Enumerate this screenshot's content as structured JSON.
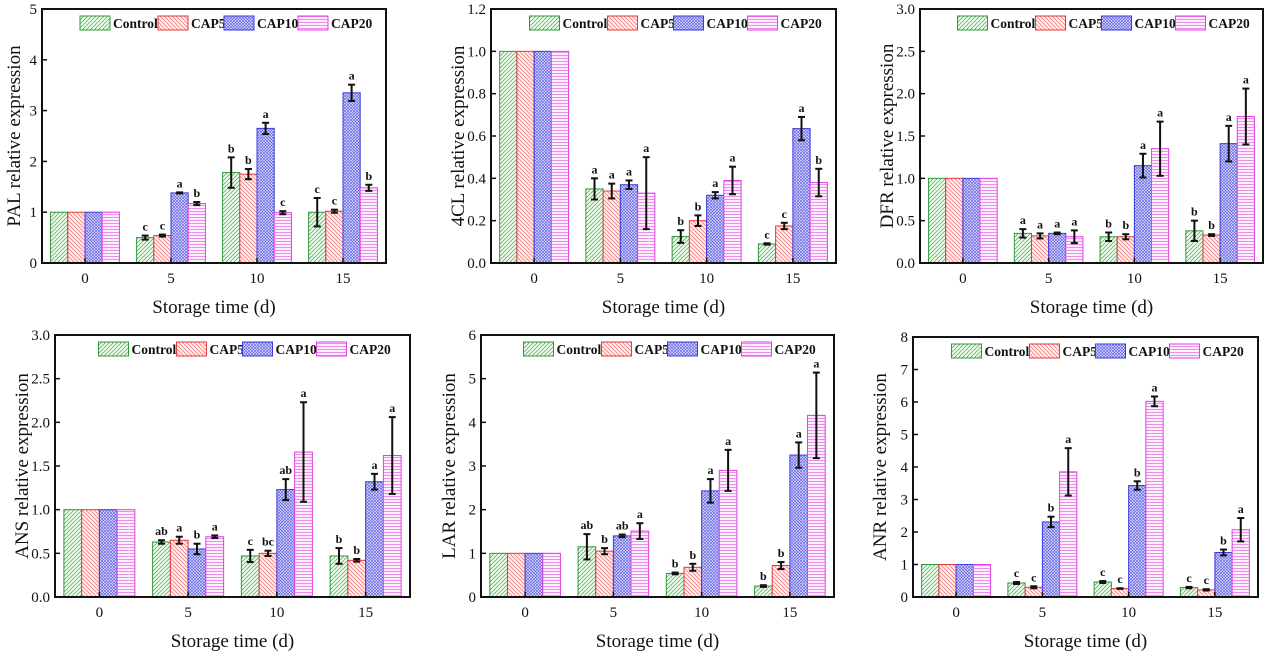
{
  "figure": {
    "description": "Relative expression of six genes during storage under four treatments"
  },
  "series_styles": [
    {
      "name": "Control",
      "color": "#2e9a3a",
      "pattern": "forward-diagonal"
    },
    {
      "name": "CAP5",
      "color": "#e03a3a",
      "pattern": "back-diagonal"
    },
    {
      "name": "CAP10",
      "color": "#3a3ae0",
      "pattern": "crosshatch"
    },
    {
      "name": "CAP20",
      "color": "#e040e0",
      "pattern": "horizontal"
    }
  ],
  "chart_data": [
    {
      "type": "bar",
      "title": "",
      "xlabel": "Storage time (d)",
      "ylabel": "PAL relative expression",
      "categories": [
        "0",
        "5",
        "10",
        "15"
      ],
      "x": [
        0,
        5,
        10,
        15
      ],
      "xlim": [
        -2.5,
        17.5
      ],
      "ylim": [
        0,
        5
      ],
      "yticks": [
        0,
        1,
        2,
        3,
        4,
        5
      ],
      "ytick_labels": [
        "0",
        "1",
        "2",
        "3",
        "4",
        "5"
      ],
      "legend": {
        "placement": "top-center",
        "entries": [
          "Control",
          "CAP5",
          "CAP10",
          "CAP20"
        ]
      },
      "grid": false,
      "series": [
        {
          "name": "Control",
          "values": [
            1.0,
            0.5,
            1.78,
            1.0
          ],
          "errors": [
            0,
            0.04,
            0.3,
            0.28
          ],
          "labels": [
            "",
            "c",
            "b",
            "c"
          ]
        },
        {
          "name": "CAP5",
          "values": [
            1.0,
            0.54,
            1.75,
            1.02
          ],
          "errors": [
            0,
            0.02,
            0.1,
            0.03
          ],
          "labels": [
            "",
            "c",
            "b",
            "c"
          ]
        },
        {
          "name": "CAP10",
          "values": [
            1.0,
            1.38,
            2.65,
            3.35
          ],
          "errors": [
            0,
            0.01,
            0.11,
            0.16
          ],
          "labels": [
            "",
            "a",
            "a",
            "a"
          ]
        },
        {
          "name": "CAP20",
          "values": [
            1.0,
            1.17,
            0.99,
            1.48
          ],
          "errors": [
            0,
            0.03,
            0.03,
            0.06
          ],
          "labels": [
            "",
            "b",
            "c",
            "b"
          ]
        }
      ]
    },
    {
      "type": "bar",
      "title": "",
      "xlabel": "Storage time (d)",
      "ylabel": "4CL relative expression",
      "categories": [
        "0",
        "5",
        "10",
        "15"
      ],
      "x": [
        0,
        5,
        10,
        15
      ],
      "xlim": [
        -2.5,
        17.5
      ],
      "ylim": [
        0,
        1.2
      ],
      "yticks": [
        0,
        0.2,
        0.4,
        0.6,
        0.8,
        1.0,
        1.2
      ],
      "ytick_labels": [
        "0.0",
        "0.2",
        "0.4",
        "0.6",
        "0.8",
        "1.0",
        "1.2"
      ],
      "legend": {
        "placement": "top-center",
        "entries": [
          "Control",
          "CAP5",
          "CAP10",
          "CAP20"
        ]
      },
      "grid": false,
      "series": [
        {
          "name": "Control",
          "values": [
            1.0,
            0.35,
            0.125,
            0.09
          ],
          "errors": [
            0,
            0.05,
            0.03,
            0.003
          ],
          "labels": [
            "",
            "a",
            "b",
            "c"
          ]
        },
        {
          "name": "CAP5",
          "values": [
            1.0,
            0.34,
            0.2,
            0.175
          ],
          "errors": [
            0,
            0.035,
            0.025,
            0.015
          ],
          "labels": [
            "",
            "a",
            "b",
            "c"
          ]
        },
        {
          "name": "CAP10",
          "values": [
            1.0,
            0.37,
            0.32,
            0.635
          ],
          "errors": [
            0,
            0.02,
            0.015,
            0.055
          ],
          "labels": [
            "",
            "a",
            "a",
            "a"
          ]
        },
        {
          "name": "CAP20",
          "values": [
            1.0,
            0.33,
            0.39,
            0.38
          ],
          "errors": [
            0,
            0.17,
            0.065,
            0.065
          ],
          "labels": [
            "",
            "a",
            "a",
            "b"
          ]
        }
      ]
    },
    {
      "type": "bar",
      "title": "",
      "xlabel": "Storage time (d)",
      "ylabel": "DFR relative expression",
      "categories": [
        "0",
        "5",
        "10",
        "15"
      ],
      "x": [
        0,
        5,
        10,
        15
      ],
      "xlim": [
        -2.5,
        17.5
      ],
      "ylim": [
        0,
        3.0
      ],
      "yticks": [
        0,
        0.5,
        1.0,
        1.5,
        2.0,
        2.5,
        3.0
      ],
      "ytick_labels": [
        "0.0",
        "0.5",
        "1.0",
        "1.5",
        "2.0",
        "2.5",
        "3.0"
      ],
      "legend": {
        "placement": "top-center",
        "entries": [
          "Control",
          "CAP5",
          "CAP10",
          "CAP20"
        ]
      },
      "grid": false,
      "series": [
        {
          "name": "Control",
          "values": [
            1.0,
            0.35,
            0.31,
            0.38
          ],
          "errors": [
            0,
            0.05,
            0.05,
            0.12
          ],
          "labels": [
            "",
            "a",
            "b",
            "b"
          ]
        },
        {
          "name": "CAP5",
          "values": [
            1.0,
            0.32,
            0.31,
            0.33
          ],
          "errors": [
            0,
            0.03,
            0.03,
            0.01
          ],
          "labels": [
            "",
            "a",
            "b",
            "b"
          ]
        },
        {
          "name": "CAP10",
          "values": [
            1.0,
            0.35,
            1.15,
            1.41
          ],
          "errors": [
            0,
            0.01,
            0.14,
            0.21
          ],
          "labels": [
            "",
            "a",
            "a",
            "a"
          ]
        },
        {
          "name": "CAP20",
          "values": [
            1.0,
            0.31,
            1.35,
            1.73
          ],
          "errors": [
            0,
            0.075,
            0.32,
            0.33
          ],
          "labels": [
            "",
            "a",
            "a",
            "a"
          ]
        }
      ]
    },
    {
      "type": "bar",
      "title": "",
      "xlabel": "Storage time (d)",
      "ylabel": "ANS relative expression",
      "categories": [
        "0",
        "5",
        "10",
        "15"
      ],
      "x": [
        0,
        5,
        10,
        15
      ],
      "xlim": [
        -2.5,
        17.5
      ],
      "ylim": [
        0,
        3.0
      ],
      "yticks": [
        0,
        0.5,
        1.0,
        1.5,
        2.0,
        2.5,
        3.0
      ],
      "ytick_labels": [
        "0.0",
        "0.5",
        "1.0",
        "1.5",
        "2.0",
        "2.5",
        "3.0"
      ],
      "legend": {
        "placement": "top-center",
        "entries": [
          "Control",
          "CAP5",
          "CAP10",
          "CAP20"
        ]
      },
      "grid": false,
      "series": [
        {
          "name": "Control",
          "values": [
            1.0,
            0.63,
            0.47,
            0.47
          ],
          "errors": [
            0,
            0.02,
            0.07,
            0.09
          ],
          "labels": [
            "",
            "ab",
            "c",
            "b"
          ]
        },
        {
          "name": "CAP5",
          "values": [
            1.0,
            0.65,
            0.5,
            0.42
          ],
          "errors": [
            0,
            0.04,
            0.03,
            0.015
          ],
          "labels": [
            "",
            "a",
            "bc",
            "b"
          ]
        },
        {
          "name": "CAP10",
          "values": [
            1.0,
            0.55,
            1.23,
            1.32
          ],
          "errors": [
            0,
            0.06,
            0.12,
            0.09
          ],
          "labels": [
            "",
            "b",
            "ab",
            "a"
          ]
        },
        {
          "name": "CAP20",
          "values": [
            1.0,
            0.69,
            1.66,
            1.62
          ],
          "errors": [
            0,
            0.015,
            0.57,
            0.44
          ],
          "labels": [
            "",
            "a",
            "a",
            "a"
          ]
        }
      ]
    },
    {
      "type": "bar",
      "title": "",
      "xlabel": "Storage time (d)",
      "ylabel": "LAR relative expression",
      "categories": [
        "0",
        "5",
        "10",
        "15"
      ],
      "x": [
        0,
        5,
        10,
        15
      ],
      "xlim": [
        -2.5,
        17.5
      ],
      "ylim": [
        0,
        6
      ],
      "yticks": [
        0,
        1,
        2,
        3,
        4,
        5,
        6
      ],
      "ytick_labels": [
        "0",
        "1",
        "2",
        "3",
        "4",
        "5",
        "6"
      ],
      "legend": {
        "placement": "top-center",
        "entries": [
          "Control",
          "CAP5",
          "CAP10",
          "CAP20"
        ]
      },
      "grid": false,
      "series": [
        {
          "name": "Control",
          "values": [
            1.0,
            1.15,
            0.54,
            0.25
          ],
          "errors": [
            0,
            0.29,
            0.02,
            0.02
          ],
          "labels": [
            "",
            "ab",
            "b",
            "b"
          ]
        },
        {
          "name": "CAP5",
          "values": [
            1.0,
            1.05,
            0.68,
            0.72
          ],
          "errors": [
            0,
            0.07,
            0.08,
            0.08
          ],
          "labels": [
            "",
            "b",
            "b",
            "b"
          ]
        },
        {
          "name": "CAP10",
          "values": [
            1.0,
            1.4,
            2.43,
            3.25
          ],
          "errors": [
            0,
            0.03,
            0.27,
            0.29
          ],
          "labels": [
            "",
            "ab",
            "a",
            "a"
          ]
        },
        {
          "name": "CAP20",
          "values": [
            1.0,
            1.51,
            2.9,
            4.16
          ],
          "errors": [
            0,
            0.18,
            0.47,
            0.98
          ],
          "labels": [
            "",
            "a",
            "a",
            "a"
          ]
        }
      ]
    },
    {
      "type": "bar",
      "title": "",
      "xlabel": "Storage time (d)",
      "ylabel": "ANR relative expression",
      "categories": [
        "0",
        "5",
        "10",
        "15"
      ],
      "x": [
        0,
        5,
        10,
        15
      ],
      "xlim": [
        -2.5,
        17.5
      ],
      "ylim": [
        0,
        8
      ],
      "yticks": [
        0,
        1,
        2,
        3,
        4,
        5,
        6,
        7,
        8
      ],
      "ytick_labels": [
        "0",
        "1",
        "2",
        "3",
        "4",
        "5",
        "6",
        "7",
        "8"
      ],
      "legend": {
        "placement": "top-center",
        "entries": [
          "Control",
          "CAP5",
          "CAP10",
          "CAP20"
        ]
      },
      "grid": false,
      "series": [
        {
          "name": "Control",
          "values": [
            1.0,
            0.43,
            0.46,
            0.29
          ],
          "errors": [
            0,
            0.03,
            0.03,
            0.02
          ],
          "labels": [
            "",
            "c",
            "c",
            "c"
          ]
        },
        {
          "name": "CAP5",
          "values": [
            1.0,
            0.3,
            0.26,
            0.22
          ],
          "errors": [
            0,
            0.03,
            0.01,
            0.02
          ],
          "labels": [
            "",
            "c",
            "c",
            "c"
          ]
        },
        {
          "name": "CAP10",
          "values": [
            1.0,
            2.31,
            3.43,
            1.37
          ],
          "errors": [
            0,
            0.16,
            0.13,
            0.09
          ],
          "labels": [
            "",
            "b",
            "b",
            "b"
          ]
        },
        {
          "name": "CAP20",
          "values": [
            1.0,
            3.85,
            6.02,
            2.07
          ],
          "errors": [
            0,
            0.73,
            0.15,
            0.36
          ],
          "labels": [
            "",
            "a",
            "a",
            "a"
          ]
        }
      ]
    }
  ]
}
